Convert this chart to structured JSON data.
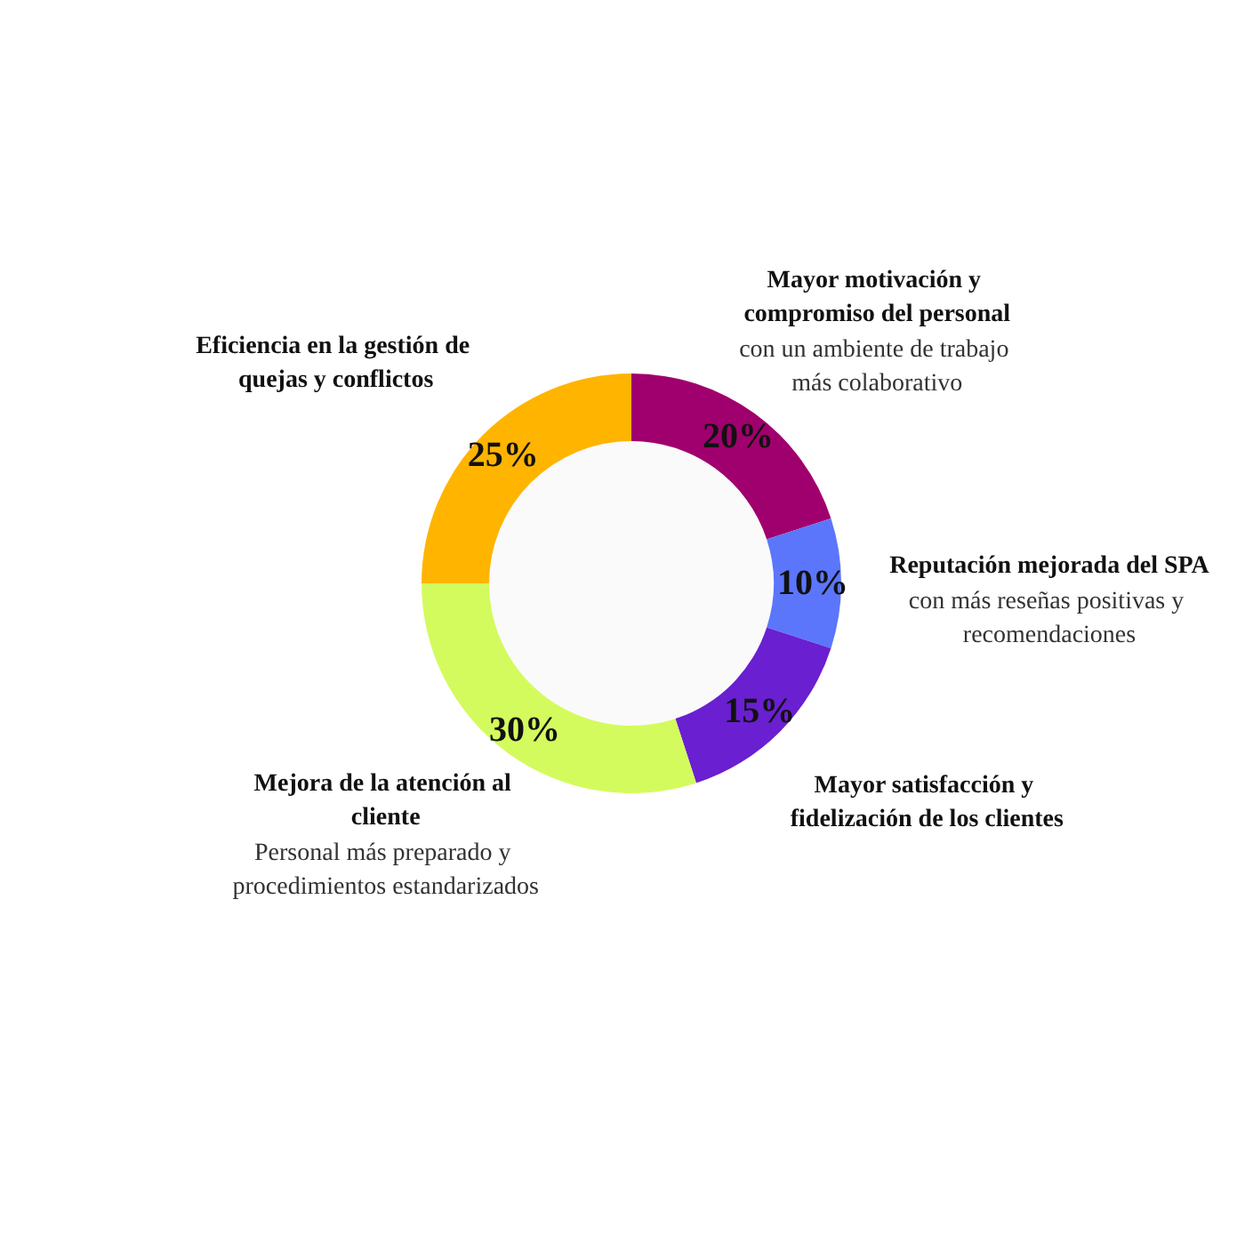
{
  "chart_data": {
    "type": "donut",
    "categories": [
      "Mayor motivación y compromiso del personal",
      "Reputación mejorada del SPA",
      "Mayor satisfacción y fidelización de los clientes",
      "Mejora de la atención al cliente",
      "Eficiencia en la gestión de quejas y conflictos"
    ],
    "values": [
      20,
      10,
      15,
      30,
      25
    ],
    "colors": [
      "#a0006e",
      "#5b76fb",
      "#6a1fd0",
      "#d4fb5d",
      "#ffb400"
    ],
    "value_labels": [
      "20%",
      "10%",
      "15%",
      "30%",
      "25%"
    ],
    "annotations": [
      {
        "text": "con un ambiente de trabajo más colaborativo",
        "x": "Mayor motivación y compromiso del personal"
      },
      {
        "text": "con más reseñas positivas y recomendaciones",
        "x": "Reputación mejorada del SPA"
      },
      {
        "text": "Personal más preparado y procedimientos estandarizados",
        "x": "Mejora de la atención al cliente"
      }
    ]
  }
}
